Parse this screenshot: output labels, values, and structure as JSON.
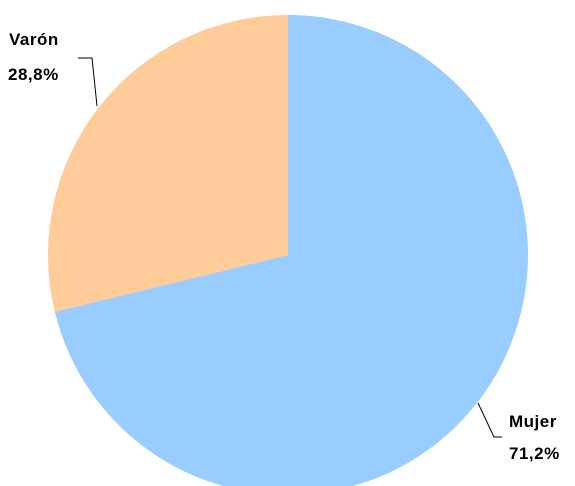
{
  "chart_data": {
    "type": "pie",
    "title": "",
    "slices": [
      {
        "name": "Mujer",
        "value": 71.2,
        "label": "71,2%",
        "color": "#99CCFF"
      },
      {
        "name": "Varón",
        "value": 28.8,
        "label": "28,8%",
        "color": "#FFCC99"
      }
    ],
    "start_angle_deg": 0,
    "direction": "clockwise",
    "legend": "none"
  }
}
